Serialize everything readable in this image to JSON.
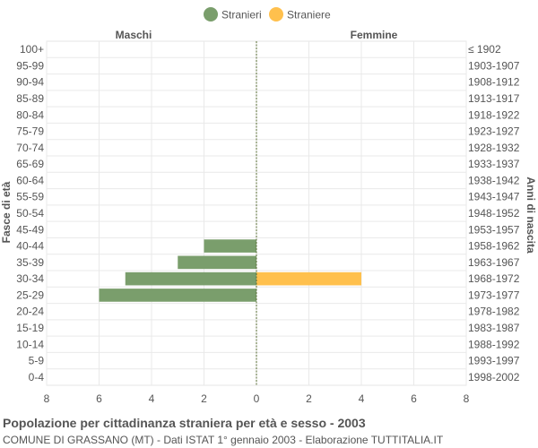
{
  "chart_data": {
    "type": "bar",
    "orientation": "horizontal",
    "layout": "population-pyramid",
    "title": "Popolazione per cittadinanza straniera per età e sesso - 2003",
    "subtitle": "COMUNE DI GRASSANO (MT) - Dati ISTAT 1° gennaio 2003 - Elaborazione TUTTITALIA.IT",
    "left_header": "Maschi",
    "right_header": "Femmine",
    "ylabel_left": "Fasce di età",
    "ylabel_right": "Anni di nascita",
    "xlim": [
      -8,
      8
    ],
    "x_ticks": [
      8,
      6,
      4,
      2,
      0,
      2,
      4,
      6,
      8
    ],
    "grid": true,
    "legend_position": "top-center",
    "categories": [
      "100+",
      "95-99",
      "90-94",
      "85-89",
      "80-84",
      "75-79",
      "70-74",
      "65-69",
      "60-64",
      "55-59",
      "50-54",
      "45-49",
      "40-44",
      "35-39",
      "30-34",
      "25-29",
      "20-24",
      "15-19",
      "10-14",
      "5-9",
      "0-4"
    ],
    "birth_years": [
      "≤ 1902",
      "1903-1907",
      "1908-1912",
      "1913-1917",
      "1918-1922",
      "1923-1927",
      "1928-1932",
      "1933-1937",
      "1938-1942",
      "1943-1947",
      "1948-1952",
      "1953-1957",
      "1958-1962",
      "1963-1967",
      "1968-1972",
      "1973-1977",
      "1978-1982",
      "1983-1987",
      "1988-1992",
      "1993-1997",
      "1998-2002"
    ],
    "series": [
      {
        "name": "Stranieri",
        "side": "left",
        "color": "#7a9e6c",
        "values": [
          0,
          0,
          0,
          0,
          0,
          0,
          0,
          0,
          0,
          0,
          0,
          0,
          2,
          3,
          5,
          6,
          0,
          0,
          0,
          0,
          0
        ]
      },
      {
        "name": "Straniere",
        "side": "right",
        "color": "#ffc04d",
        "values": [
          0,
          0,
          0,
          0,
          0,
          0,
          0,
          0,
          0,
          0,
          0,
          0,
          0,
          0,
          4,
          0,
          0,
          0,
          0,
          0,
          0
        ]
      }
    ]
  }
}
